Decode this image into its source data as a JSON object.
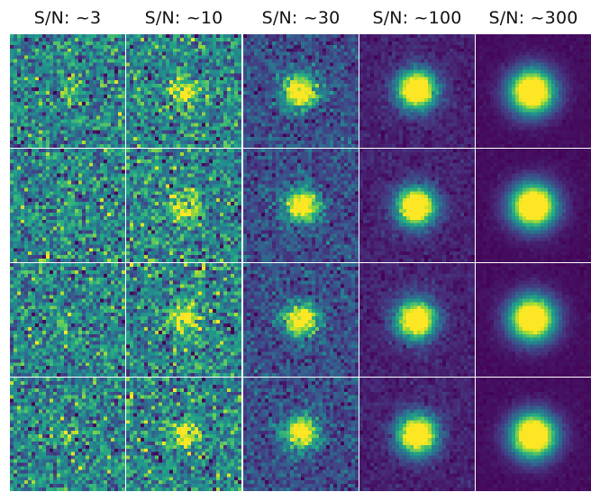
{
  "columns": [
    {
      "label": "S/N: ~3",
      "snr": 3
    },
    {
      "label": "S/N: ~10",
      "snr": 10
    },
    {
      "label": "S/N: ~30",
      "snr": 30
    },
    {
      "label": "S/N: ~100",
      "snr": 100
    },
    {
      "label": "S/N: ~300",
      "snr": 300
    }
  ],
  "rows": 4,
  "colormap": "viridis"
}
